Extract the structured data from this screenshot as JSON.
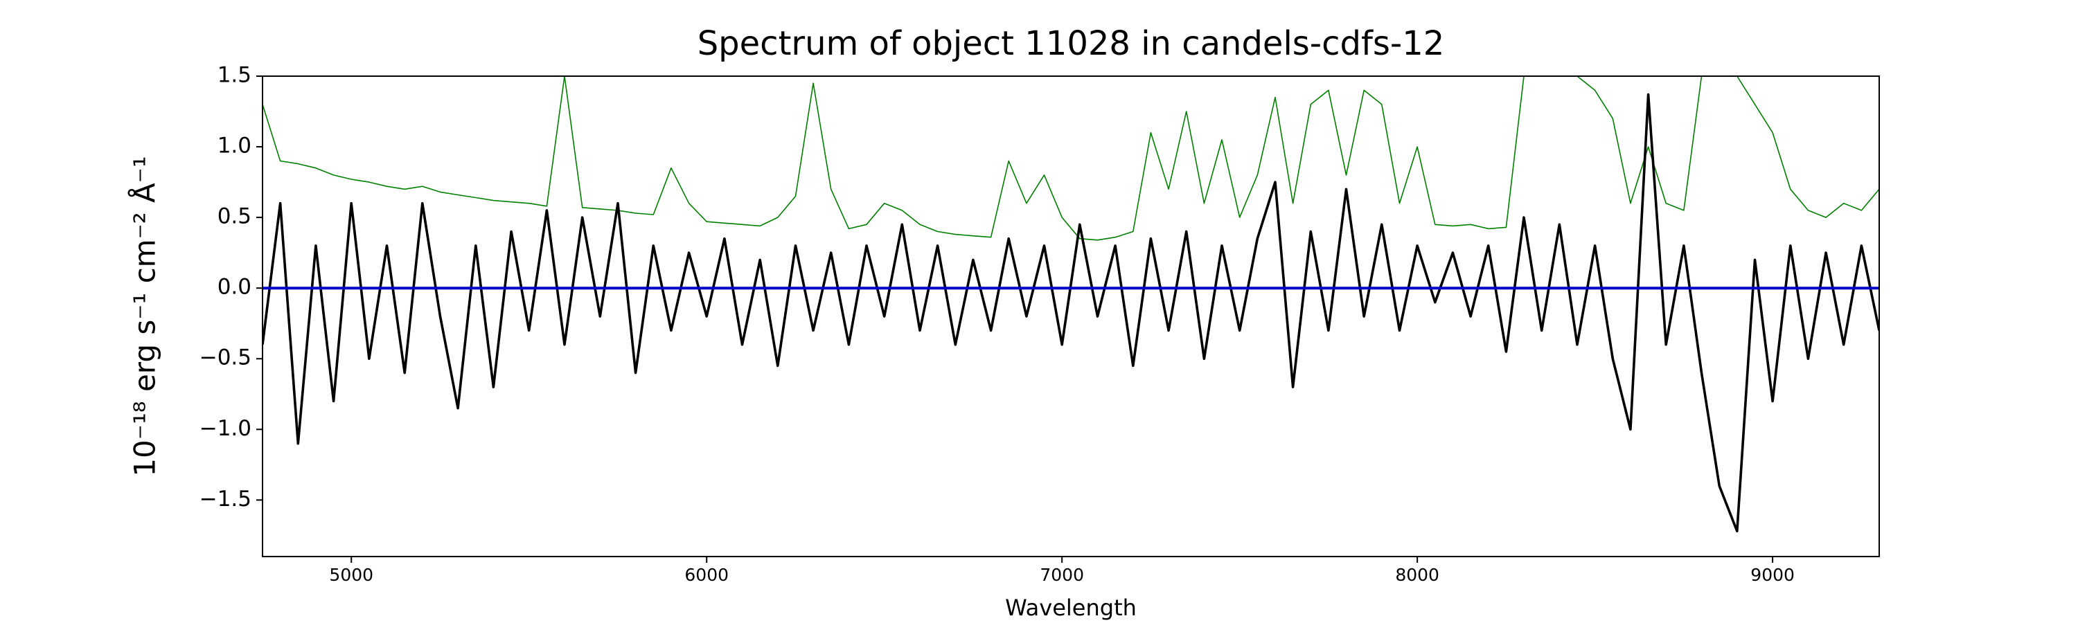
{
  "chart_data": {
    "type": "line",
    "title": "Spectrum of object 11028 in candels-cdfs-12",
    "x_label": "Wavelength",
    "y_label": "10⁻¹⁸ erg s⁻¹ cm⁻² Å⁻¹",
    "x": [
      4750,
      4800,
      4850,
      4900,
      4950,
      5000,
      5050,
      5100,
      5150,
      5200,
      5250,
      5300,
      5350,
      5400,
      5450,
      5500,
      5550,
      5600,
      5650,
      5700,
      5750,
      5800,
      5850,
      5900,
      5950,
      6000,
      6050,
      6100,
      6150,
      6200,
      6250,
      6300,
      6350,
      6400,
      6450,
      6500,
      6550,
      6600,
      6650,
      6700,
      6750,
      6800,
      6850,
      6900,
      6950,
      7000,
      7050,
      7100,
      7150,
      7200,
      7250,
      7300,
      7350,
      7400,
      7450,
      7500,
      7550,
      7600,
      7650,
      7700,
      7750,
      7800,
      7850,
      7900,
      7950,
      8000,
      8050,
      8100,
      8150,
      8200,
      8250,
      8300,
      8350,
      8400,
      8450,
      8500,
      8550,
      8600,
      8650,
      8700,
      8750,
      8800,
      8850,
      8900,
      8950,
      9000,
      9050,
      9100,
      9150,
      9200,
      9250,
      9300
    ],
    "series": [
      {
        "color": "#008000",
        "values": [
          1.3,
          0.9,
          0.88,
          0.85,
          0.8,
          0.77,
          0.75,
          0.72,
          0.7,
          0.72,
          0.68,
          0.66,
          0.64,
          0.62,
          0.61,
          0.6,
          0.58,
          1.5,
          0.57,
          0.56,
          0.55,
          0.53,
          0.52,
          0.85,
          0.6,
          0.47,
          0.46,
          0.45,
          0.44,
          0.5,
          0.65,
          1.45,
          0.7,
          0.42,
          0.45,
          0.6,
          0.55,
          0.45,
          0.4,
          0.38,
          0.37,
          0.36,
          0.9,
          0.6,
          0.8,
          0.5,
          0.35,
          0.34,
          0.36,
          0.4,
          1.1,
          0.7,
          1.25,
          0.6,
          1.05,
          0.5,
          0.8,
          1.35,
          0.6,
          1.3,
          1.4,
          0.8,
          1.4,
          1.3,
          0.6,
          1.0,
          0.45,
          0.44,
          0.45,
          0.42,
          0.43,
          1.5,
          1.5,
          1.5,
          1.5,
          1.4,
          1.2,
          0.6,
          1.0,
          0.6,
          0.55,
          1.5,
          1.5,
          1.5,
          1.3,
          1.1,
          0.7,
          0.55,
          0.5,
          0.6,
          0.55,
          0.7
        ]
      },
      {
        "color": "#000000",
        "values": [
          -0.4,
          0.6,
          -1.1,
          0.3,
          -0.8,
          0.6,
          -0.5,
          0.3,
          -0.6,
          0.6,
          -0.2,
          -0.85,
          0.3,
          -0.7,
          0.4,
          -0.3,
          0.55,
          -0.4,
          0.5,
          -0.2,
          0.6,
          -0.6,
          0.3,
          -0.3,
          0.25,
          -0.2,
          0.35,
          -0.4,
          0.2,
          -0.55,
          0.3,
          -0.3,
          0.25,
          -0.4,
          0.3,
          -0.2,
          0.45,
          -0.3,
          0.3,
          -0.4,
          0.2,
          -0.3,
          0.35,
          -0.2,
          0.3,
          -0.4,
          0.45,
          -0.2,
          0.3,
          -0.55,
          0.35,
          -0.3,
          0.4,
          -0.5,
          0.3,
          -0.3,
          0.35,
          0.75,
          -0.7,
          0.4,
          -0.3,
          0.7,
          -0.2,
          0.45,
          -0.3,
          0.3,
          -0.1,
          0.25,
          -0.2,
          0.3,
          -0.45,
          0.5,
          -0.3,
          0.45,
          -0.4,
          0.3,
          -0.5,
          -1.0,
          1.37,
          -0.4,
          0.3,
          -0.6,
          -1.4,
          -1.72,
          0.2,
          -0.8,
          0.3,
          -0.5,
          0.25,
          -0.4,
          0.3,
          -0.3
        ]
      },
      {
        "color": "#0000cc",
        "x": [
          4750,
          9300
        ],
        "values": [
          0,
          0
        ]
      }
    ],
    "xlim": [
      4750,
      9300
    ],
    "ylim": [
      -1.9,
      1.5
    ],
    "xticks": [
      5000,
      6000,
      7000,
      8000,
      9000
    ],
    "yticks": [
      {
        "value": -1.5,
        "label": "−1.5"
      },
      {
        "value": -1.0,
        "label": "−1.0"
      },
      {
        "value": -0.5,
        "label": "−0.5"
      },
      {
        "value": 0,
        "label": "0.0"
      },
      {
        "value": 0.5,
        "label": "0.5"
      },
      {
        "value": 1.0,
        "label": "1.0"
      },
      {
        "value": 1.5,
        "label": "1.5"
      }
    ],
    "grid": false
  }
}
